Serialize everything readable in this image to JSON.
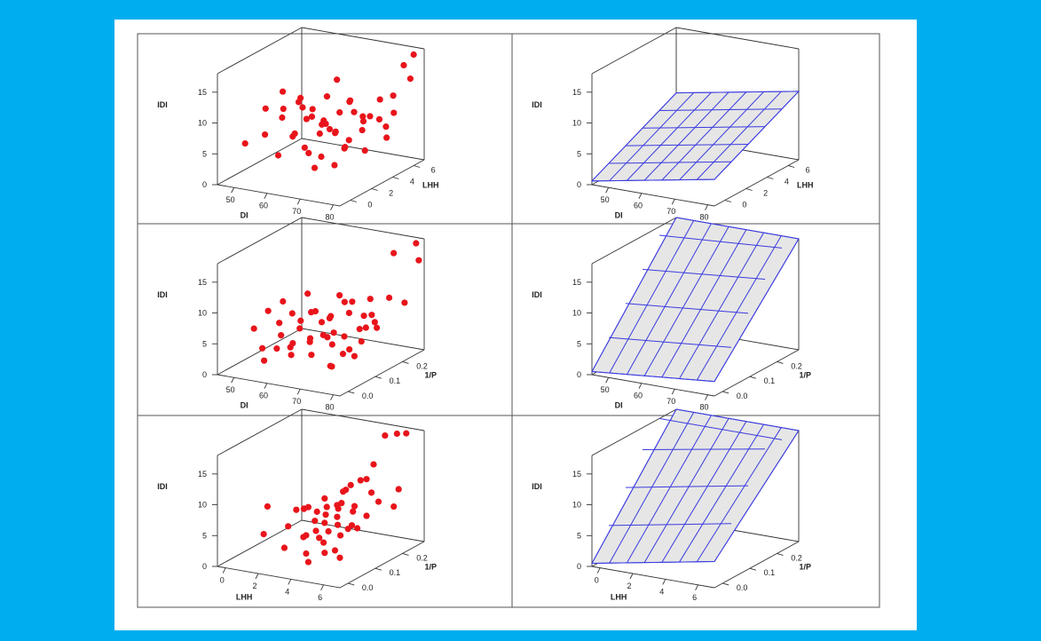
{
  "colors": {
    "background": "#00AEEF",
    "paper": "#FFFFFF",
    "points": "#E8141B",
    "surface_fill": "#E6E6E6",
    "surface_grid": "#3B3BE0",
    "axes": "#333333"
  },
  "chart_data": [
    {
      "type": "scatter",
      "projection": "3d",
      "position": "top-left",
      "xlabel": "DI",
      "ylabel": "LHH",
      "zlabel": "IDI",
      "xticks": [
        "50",
        "60",
        "70",
        "80"
      ],
      "yticks": [
        "0",
        "2",
        "4",
        "6"
      ],
      "zticks": [
        "0",
        "5",
        "10",
        "15"
      ],
      "xlim": [
        45,
        82
      ],
      "ylim": [
        -1,
        7
      ],
      "zlim": [
        0,
        18
      ],
      "points": [
        [
          47,
          1,
          5
        ],
        [
          49,
          4,
          8
        ],
        [
          50,
          2,
          10
        ],
        [
          52,
          3,
          12
        ],
        [
          51,
          5,
          9
        ],
        [
          53,
          1,
          7
        ],
        [
          55,
          2,
          9
        ],
        [
          56,
          4,
          7
        ],
        [
          58,
          3,
          10
        ],
        [
          57,
          1,
          4
        ],
        [
          59,
          5,
          10
        ],
        [
          60,
          2,
          12
        ],
        [
          61,
          3,
          10
        ],
        [
          62,
          1,
          8
        ],
        [
          63,
          4,
          6
        ],
        [
          62,
          5,
          13
        ],
        [
          64,
          2,
          10
        ],
        [
          65,
          3,
          8
        ],
        [
          66,
          4,
          9
        ],
        [
          65,
          1,
          6
        ],
        [
          67,
          2,
          9
        ],
        [
          66,
          5,
          10
        ],
        [
          68,
          3,
          7
        ],
        [
          69,
          4,
          11
        ],
        [
          70,
          1,
          5
        ],
        [
          71,
          2,
          8
        ],
        [
          70,
          5,
          7
        ],
        [
          72,
          3,
          6
        ],
        [
          73,
          4,
          9
        ],
        [
          74,
          2,
          6
        ],
        [
          75,
          5,
          11
        ],
        [
          76,
          3,
          8
        ],
        [
          77,
          1,
          7
        ],
        [
          78,
          4,
          9
        ],
        [
          79,
          5,
          12
        ],
        [
          80,
          2,
          6
        ],
        [
          81,
          6,
          14
        ],
        [
          79,
          6,
          16
        ],
        [
          80,
          4,
          8
        ],
        [
          82,
          6,
          22
        ],
        [
          55,
          3,
          5
        ],
        [
          60,
          4,
          5
        ],
        [
          63,
          2,
          4
        ],
        [
          68,
          1,
          3
        ],
        [
          72,
          5,
          8
        ],
        [
          74,
          1,
          4
        ],
        [
          76,
          6,
          8
        ],
        [
          58,
          5,
          6
        ],
        [
          64,
          6,
          7
        ],
        [
          77,
          5,
          5
        ]
      ]
    },
    {
      "type": "surface",
      "projection": "3d",
      "position": "top-right",
      "xlabel": "DI",
      "ylabel": "LHH",
      "zlabel": "IDI",
      "xticks": [
        "50",
        "60",
        "70",
        "80"
      ],
      "yticks": [
        "0",
        "2",
        "4",
        "6"
      ],
      "zticks": [
        "0",
        "5",
        "10",
        "15"
      ],
      "xlim": [
        45,
        82
      ],
      "ylim": [
        -1,
        7
      ],
      "zlim": [
        0,
        18
      ],
      "grid_x": [
        45,
        82,
        7
      ],
      "grid_y": [
        -1,
        7,
        5
      ],
      "surface": {
        "z0": 0.6,
        "dz_dx": 0.1,
        "dz_dy": 0.85
      }
    },
    {
      "type": "scatter",
      "projection": "3d",
      "position": "middle-left",
      "xlabel": "DI",
      "ylabel": "1/P",
      "zlabel": "IDI",
      "xticks": [
        "50",
        "60",
        "70",
        "80"
      ],
      "yticks": [
        "0.0",
        "0.1",
        "0.2"
      ],
      "zticks": [
        "0",
        "5",
        "10",
        "15"
      ],
      "xlim": [
        45,
        82
      ],
      "ylim": [
        -0.03,
        0.28
      ],
      "zlim": [
        0,
        18
      ],
      "points": [
        [
          47,
          0.08,
          5
        ],
        [
          48,
          0.12,
          7
        ],
        [
          50,
          0.15,
          8
        ],
        [
          52,
          0.05,
          3
        ],
        [
          53,
          0.1,
          6
        ],
        [
          55,
          0.18,
          9
        ],
        [
          56,
          0.07,
          5
        ],
        [
          57,
          0.13,
          6
        ],
        [
          58,
          0.03,
          4
        ],
        [
          59,
          0.16,
          7
        ],
        [
          60,
          0.09,
          6
        ],
        [
          61,
          0.12,
          8
        ],
        [
          62,
          0.04,
          5
        ],
        [
          63,
          0.14,
          4
        ],
        [
          63,
          0.2,
          9
        ],
        [
          64,
          0.08,
          5
        ],
        [
          65,
          0.11,
          7
        ],
        [
          66,
          0.06,
          3
        ],
        [
          67,
          0.17,
          9
        ],
        [
          67,
          0.13,
          5
        ],
        [
          68,
          0.03,
          6
        ],
        [
          69,
          0.1,
          4
        ],
        [
          70,
          0.15,
          8
        ],
        [
          70,
          0.07,
          6
        ],
        [
          71,
          0.12,
          5
        ],
        [
          72,
          0.18,
          7
        ],
        [
          73,
          0.05,
          2
        ],
        [
          74,
          0.14,
          6
        ],
        [
          75,
          0.09,
          4
        ],
        [
          76,
          0.16,
          8
        ],
        [
          77,
          0.11,
          5
        ],
        [
          78,
          0.2,
          10
        ],
        [
          79,
          0.06,
          4
        ],
        [
          80,
          0.13,
          7
        ],
        [
          81,
          0.22,
          9
        ],
        [
          81,
          0.18,
          20
        ],
        [
          82,
          0.25,
          25
        ],
        [
          82,
          0.26,
          15
        ],
        [
          80,
          0.09,
          8
        ],
        [
          75,
          0.02,
          3
        ],
        [
          62,
          0.18,
          6
        ],
        [
          58,
          0.08,
          3
        ],
        [
          52,
          0.16,
          6
        ],
        [
          66,
          0.21,
          8
        ],
        [
          72,
          0.22,
          5
        ],
        [
          69,
          0.24,
          8
        ],
        [
          55,
          0.02,
          2
        ],
        [
          60,
          0.2,
          5
        ],
        [
          78,
          0.03,
          5
        ],
        [
          64,
          0.01,
          4
        ]
      ]
    },
    {
      "type": "surface",
      "projection": "3d",
      "position": "middle-right",
      "xlabel": "DI",
      "ylabel": "1/P",
      "zlabel": "IDI",
      "xticks": [
        "50",
        "60",
        "70",
        "80"
      ],
      "yticks": [
        "0.0",
        "0.1",
        "0.2"
      ],
      "zticks": [
        "0",
        "5",
        "10",
        "15"
      ],
      "xlim": [
        45,
        82
      ],
      "ylim": [
        -0.03,
        0.28
      ],
      "zlim": [
        0,
        18
      ],
      "grid_x": [
        45,
        82,
        7
      ],
      "grid_y": [
        -0.03,
        0.28,
        5
      ],
      "surface": {
        "z0": 0.5,
        "dz_dx": 0.05,
        "dz_dy": 65
      }
    },
    {
      "type": "scatter",
      "projection": "3d",
      "position": "bottom-left",
      "xlabel": "LHH",
      "ylabel": "1/P",
      "zlabel": "IDI",
      "xticks": [
        "0",
        "2",
        "4",
        "6"
      ],
      "yticks": [
        "0.0",
        "0.1",
        "0.2"
      ],
      "zticks": [
        "0",
        "5",
        "10",
        "15"
      ],
      "xlim": [
        -0.5,
        7
      ],
      "ylim": [
        -0.03,
        0.28
      ],
      "zlim": [
        0,
        18
      ],
      "points": [
        [
          0.4,
          0.1,
          7
        ],
        [
          1.0,
          0.05,
          4
        ],
        [
          1.5,
          0.14,
          6
        ],
        [
          2.0,
          0.08,
          5
        ],
        [
          2.3,
          0.12,
          7
        ],
        [
          2.6,
          0.03,
          3
        ],
        [
          2.9,
          0.16,
          8
        ],
        [
          3.1,
          0.07,
          4
        ],
        [
          3.3,
          0.1,
          6
        ],
        [
          3.4,
          0.13,
          5
        ],
        [
          3.6,
          0.05,
          5
        ],
        [
          3.7,
          0.18,
          9
        ],
        [
          3.8,
          0.11,
          7
        ],
        [
          3.9,
          0.08,
          4
        ],
        [
          4.0,
          0.14,
          6
        ],
        [
          4.1,
          0.02,
          3
        ],
        [
          4.2,
          0.16,
          10
        ],
        [
          4.3,
          0.09,
          5
        ],
        [
          4.4,
          0.12,
          8
        ],
        [
          4.5,
          0.06,
          4
        ],
        [
          4.6,
          0.19,
          11
        ],
        [
          4.7,
          0.1,
          6
        ],
        [
          4.8,
          0.15,
          7
        ],
        [
          4.9,
          0.04,
          3
        ],
        [
          5.0,
          0.12,
          5
        ],
        [
          5.1,
          0.2,
          9
        ],
        [
          5.2,
          0.08,
          5
        ],
        [
          5.3,
          0.17,
          12
        ],
        [
          5.4,
          0.11,
          6
        ],
        [
          5.5,
          0.06,
          2
        ],
        [
          5.6,
          0.22,
          18
        ],
        [
          5.8,
          0.14,
          7
        ],
        [
          6.0,
          0.24,
          24
        ],
        [
          6.2,
          0.16,
          9
        ],
        [
          6.4,
          0.25,
          28
        ],
        [
          6.6,
          0.21,
          10
        ],
        [
          6.8,
          0.18,
          8
        ],
        [
          3.0,
          0.2,
          6
        ],
        [
          4.4,
          0.01,
          2
        ],
        [
          3.5,
          0.22,
          9
        ],
        [
          2.8,
          0.09,
          8
        ],
        [
          5.7,
          0.03,
          4
        ],
        [
          4.9,
          0.22,
          13
        ],
        [
          3.2,
          0.15,
          7
        ],
        [
          4.6,
          0.12,
          9
        ],
        [
          2.1,
          0.18,
          5
        ],
        [
          5.9,
          0.1,
          6
        ],
        [
          3.9,
          0.21,
          6
        ],
        [
          4.2,
          0.05,
          6
        ],
        [
          3.4,
          0.07,
          9
        ]
      ]
    },
    {
      "type": "surface",
      "projection": "3d",
      "position": "bottom-right",
      "xlabel": "LHH",
      "ylabel": "1/P",
      "zlabel": "IDI",
      "xticks": [
        "0",
        "2",
        "4",
        "6"
      ],
      "yticks": [
        "0.0",
        "0.1",
        "0.2"
      ],
      "zticks": [
        "0",
        "5",
        "10",
        "15"
      ],
      "xlim": [
        -0.5,
        7
      ],
      "ylim": [
        -0.03,
        0.28
      ],
      "zlim": [
        0,
        18
      ],
      "grid_x": [
        -0.5,
        7,
        7
      ],
      "grid_y": [
        -0.03,
        0.28,
        5
      ],
      "surface": {
        "z0": 0.5,
        "dz_dx": 0.5,
        "dz_dy": 75
      }
    }
  ]
}
